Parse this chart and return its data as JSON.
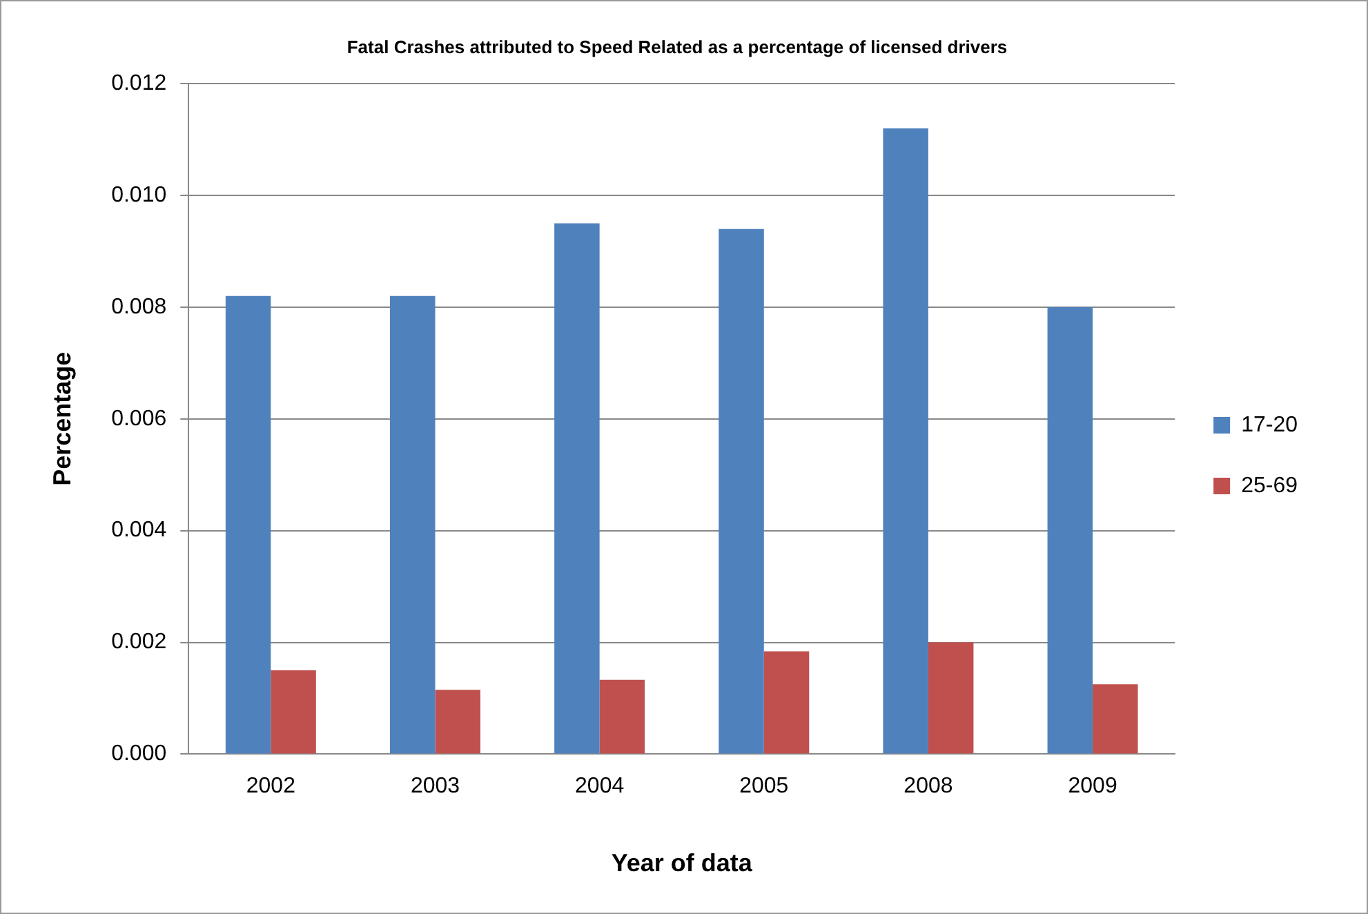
{
  "chart_data": {
    "type": "bar",
    "title": "Fatal Crashes attributed to Speed Related as a percentage of licensed drivers",
    "xlabel": "Year of data",
    "ylabel": "Percentage",
    "categories": [
      "2002",
      "2003",
      "2004",
      "2005",
      "2008",
      "2009"
    ],
    "series": [
      {
        "name": "17-20",
        "color": "#4f81bd",
        "values": [
          0.0082,
          0.0082,
          0.0095,
          0.0094,
          0.0112,
          0.008
        ]
      },
      {
        "name": "25-69",
        "color": "#c0504d",
        "values": [
          0.0015,
          0.00115,
          0.00133,
          0.00184,
          0.002,
          0.00125
        ]
      }
    ],
    "ylim": [
      0,
      0.012
    ],
    "yticks": [
      {
        "value": 0,
        "label": "0.000"
      },
      {
        "value": 0.002,
        "label": "0.002"
      },
      {
        "value": 0.004,
        "label": "0.004"
      },
      {
        "value": 0.006,
        "label": "0.006"
      },
      {
        "value": 0.008,
        "label": "0.008"
      },
      {
        "value": 0.01,
        "label": "0.010"
      },
      {
        "value": 0.012,
        "label": "0.012"
      }
    ],
    "grid": "y",
    "legend": "right"
  }
}
